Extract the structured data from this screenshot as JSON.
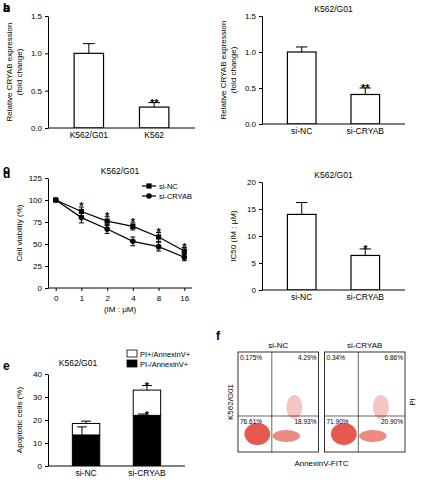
{
  "chart_data": [
    {
      "panel": "a",
      "type": "bar",
      "categories": [
        "K562/G01",
        "K562"
      ],
      "values": [
        1.0,
        0.28
      ],
      "errors": [
        0.13,
        0.06
      ],
      "color": "#ffffff",
      "ylabel": [
        "Relative CRYAB expression",
        "(fold change)"
      ],
      "ylim": [
        0,
        1.5
      ],
      "yticks": [
        {
          "value": 0,
          "label": "0.0"
        },
        {
          "value": 0.5,
          "label": "0.5"
        },
        {
          "value": 1,
          "label": "1.0"
        },
        {
          "value": 1.5,
          "label": "1.5"
        }
      ],
      "annotations": [
        {
          "text": "**",
          "x": 1
        }
      ]
    },
    {
      "panel": "b",
      "type": "bar",
      "title": "K562/G01",
      "categories": [
        "si-NC",
        "si-CRYAB"
      ],
      "values": [
        1.0,
        0.41
      ],
      "errors": [
        0.07,
        0.09
      ],
      "color": "#ffffff",
      "ylabel": [
        "Relative CRYAB expression",
        "(fold change)"
      ],
      "ylim": [
        0,
        1.5
      ],
      "yticks": [
        {
          "value": 0,
          "label": "0.0"
        },
        {
          "value": 0.5,
          "label": "0.5"
        },
        {
          "value": 1,
          "label": "1.0"
        },
        {
          "value": 1.5,
          "label": "1.5"
        }
      ],
      "annotations": [
        {
          "text": "**",
          "x": 1
        }
      ]
    },
    {
      "panel": "c",
      "type": "line",
      "title": "K562/G01",
      "categories": [
        "0",
        "1",
        "2",
        "4",
        "8",
        "16"
      ],
      "xlabel": "(IM : μM)",
      "ylabel": [
        "Cell viability (%)"
      ],
      "ylim": [
        0,
        125
      ],
      "yticks": [
        0,
        25,
        50,
        75,
        100,
        125
      ],
      "legend": "upper right",
      "series": [
        {
          "name": "si-NC",
          "color": "#000000",
          "marker": "square",
          "values": [
            100,
            87,
            76,
            70,
            58,
            42
          ],
          "errors": [
            0,
            5,
            5,
            4,
            5,
            4
          ]
        },
        {
          "name": "si-CRYAB",
          "color": "#000000",
          "marker": "circle",
          "values": [
            100,
            80,
            67,
            53,
            47,
            35
          ],
          "errors": [
            0,
            6,
            5,
            5,
            5,
            4
          ]
        }
      ],
      "annotations": [
        {
          "text": "*",
          "x": 1
        },
        {
          "text": "*",
          "x": 2
        },
        {
          "text": "*",
          "x": 3
        },
        {
          "text": "*",
          "x": 4
        },
        {
          "text": "*",
          "x": 5
        }
      ]
    },
    {
      "panel": "d",
      "type": "bar",
      "title": "K562/G01",
      "categories": [
        "si-NC",
        "si-CRYAB"
      ],
      "values": [
        14.0,
        6.4
      ],
      "errors": [
        2.2,
        1.2
      ],
      "color": "#ffffff",
      "ylabel": [
        "IC50 (IM : μM)"
      ],
      "ylim": [
        0,
        20
      ],
      "yticks": [
        0,
        5,
        10,
        15,
        20
      ],
      "annotations": [
        {
          "text": "*",
          "x": 1
        }
      ]
    },
    {
      "panel": "e",
      "type": "bar",
      "stacked": true,
      "title": "K562/G01",
      "categories": [
        "si-NC",
        "si-CRYAB"
      ],
      "ylabel": [
        "Apoptotic cells (%)"
      ],
      "ylim": [
        0,
        40
      ],
      "yticks": [
        0,
        10,
        20,
        30,
        40
      ],
      "legend": "above",
      "series": [
        {
          "name": "PI-/AnnexinV+",
          "color": "#000000",
          "values": [
            13.5,
            22
          ],
          "errors": [
            3.5,
            0.6
          ]
        },
        {
          "name": "PI+/AnnexinV+",
          "color": "#ffffff",
          "values": [
            5,
            11
          ],
          "errors": [
            1,
            2
          ]
        }
      ],
      "annotations": [
        {
          "text": "*",
          "x": 1
        },
        {
          "text": "*",
          "x": 1,
          "series": 0
        }
      ]
    },
    {
      "panel": "f",
      "type": "flow_cytometry",
      "row_label": "K562/G01",
      "xlabel": "AnnexinV-FITC",
      "ylabel": "PI",
      "color": "#e03c31",
      "panels": [
        {
          "title": "si-NC",
          "quadrants": {
            "values": [
              0.175,
              4.29,
              76.61,
              18.93
            ],
            "value_labels": [
              "0.175%",
              "4.29%",
              "76.61%",
              "18.93%"
            ]
          }
        },
        {
          "title": "si-CRYAB",
          "quadrants": {
            "values": [
              0.34,
              6.86,
              71.9,
              20.9
            ],
            "value_labels": [
              "0.34%",
              "6.86%",
              "71.90%",
              "20.90%"
            ]
          }
        }
      ]
    }
  ]
}
